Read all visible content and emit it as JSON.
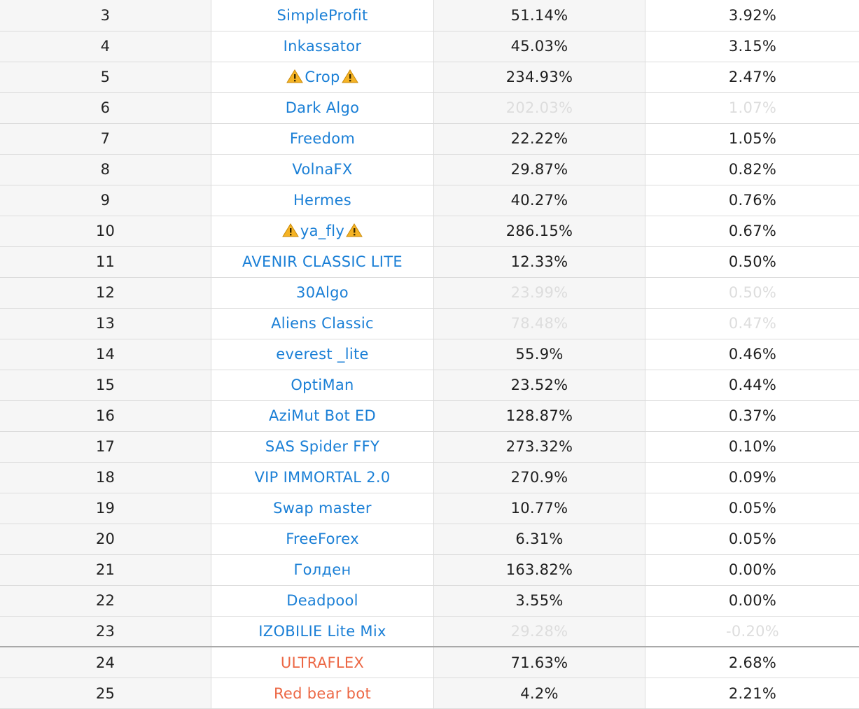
{
  "table": {
    "rows": [
      {
        "rank": "3",
        "name": "SimpleProfit",
        "total": "51.14%",
        "month": "3.92%",
        "link_color": "blue",
        "warn": false,
        "faded": false
      },
      {
        "rank": "4",
        "name": "Inkassator",
        "total": "45.03%",
        "month": "3.15%",
        "link_color": "blue",
        "warn": false,
        "faded": false
      },
      {
        "rank": "5",
        "name": "Crop",
        "total": "234.93%",
        "month": "2.47%",
        "link_color": "blue",
        "warn": true,
        "faded": false
      },
      {
        "rank": "6",
        "name": "Dark Algo",
        "total": "202.03%",
        "month": "1.07%",
        "link_color": "blue",
        "warn": false,
        "faded": true
      },
      {
        "rank": "7",
        "name": "Freedom",
        "total": "22.22%",
        "month": "1.05%",
        "link_color": "blue",
        "warn": false,
        "faded": false
      },
      {
        "rank": "8",
        "name": "VolnaFX",
        "total": "29.87%",
        "month": "0.82%",
        "link_color": "blue",
        "warn": false,
        "faded": false
      },
      {
        "rank": "9",
        "name": "Hermes",
        "total": "40.27%",
        "month": "0.76%",
        "link_color": "blue",
        "warn": false,
        "faded": false
      },
      {
        "rank": "10",
        "name": "ya_fly",
        "total": "286.15%",
        "month": "0.67%",
        "link_color": "blue",
        "warn": true,
        "faded": false
      },
      {
        "rank": "11",
        "name": "AVENIR CLASSIC LITE",
        "total": "12.33%",
        "month": "0.50%",
        "link_color": "blue",
        "warn": false,
        "faded": false
      },
      {
        "rank": "12",
        "name": "30Algo",
        "total": "23.99%",
        "month": "0.50%",
        "link_color": "blue",
        "warn": false,
        "faded": true
      },
      {
        "rank": "13",
        "name": "Aliens Classic",
        "total": "78.48%",
        "month": "0.47%",
        "link_color": "blue",
        "warn": false,
        "faded": true
      },
      {
        "rank": "14",
        "name": "everest _lite",
        "total": "55.9%",
        "month": "0.46%",
        "link_color": "blue",
        "warn": false,
        "faded": false
      },
      {
        "rank": "15",
        "name": "OptiMan",
        "total": "23.52%",
        "month": "0.44%",
        "link_color": "blue",
        "warn": false,
        "faded": false
      },
      {
        "rank": "16",
        "name": "AziMut Bot ED",
        "total": "128.87%",
        "month": "0.37%",
        "link_color": "blue",
        "warn": false,
        "faded": false
      },
      {
        "rank": "17",
        "name": "SAS Spider FFY",
        "total": "273.32%",
        "month": "0.10%",
        "link_color": "blue",
        "warn": false,
        "faded": false
      },
      {
        "rank": "18",
        "name": "VIP IMMORTAL 2.0",
        "total": "270.9%",
        "month": "0.09%",
        "link_color": "blue",
        "warn": false,
        "faded": false
      },
      {
        "rank": "19",
        "name": "Swap master",
        "total": "10.77%",
        "month": "0.05%",
        "link_color": "blue",
        "warn": false,
        "faded": false
      },
      {
        "rank": "20",
        "name": "FreeForex",
        "total": "6.31%",
        "month": "0.05%",
        "link_color": "blue",
        "warn": false,
        "faded": false
      },
      {
        "rank": "21",
        "name": "Голден",
        "total": "163.82%",
        "month": "0.00%",
        "link_color": "blue",
        "warn": false,
        "faded": false
      },
      {
        "rank": "22",
        "name": "Deadpool",
        "total": "3.55%",
        "month": "0.00%",
        "link_color": "blue",
        "warn": false,
        "faded": false
      },
      {
        "rank": "23",
        "name": "IZOBILIE Lite Mix",
        "total": "29.28%",
        "month": "-0.20%",
        "link_color": "blue",
        "warn": false,
        "faded": true
      },
      {
        "rank": "24",
        "name": "ULTRAFLEX",
        "total": "71.63%",
        "month": "2.68%",
        "link_color": "red",
        "warn": false,
        "faded": false,
        "separator": true
      },
      {
        "rank": "25",
        "name": "Red bear bot",
        "total": "4.2%",
        "month": "2.21%",
        "link_color": "red",
        "warn": false,
        "faded": false
      }
    ]
  },
  "colors": {
    "link_blue": "#1a7fd6",
    "link_red": "#ec6744",
    "faded_text": "#dddddd",
    "warning_fill": "#f5b324"
  },
  "icons": {
    "warning": "warning-icon"
  }
}
